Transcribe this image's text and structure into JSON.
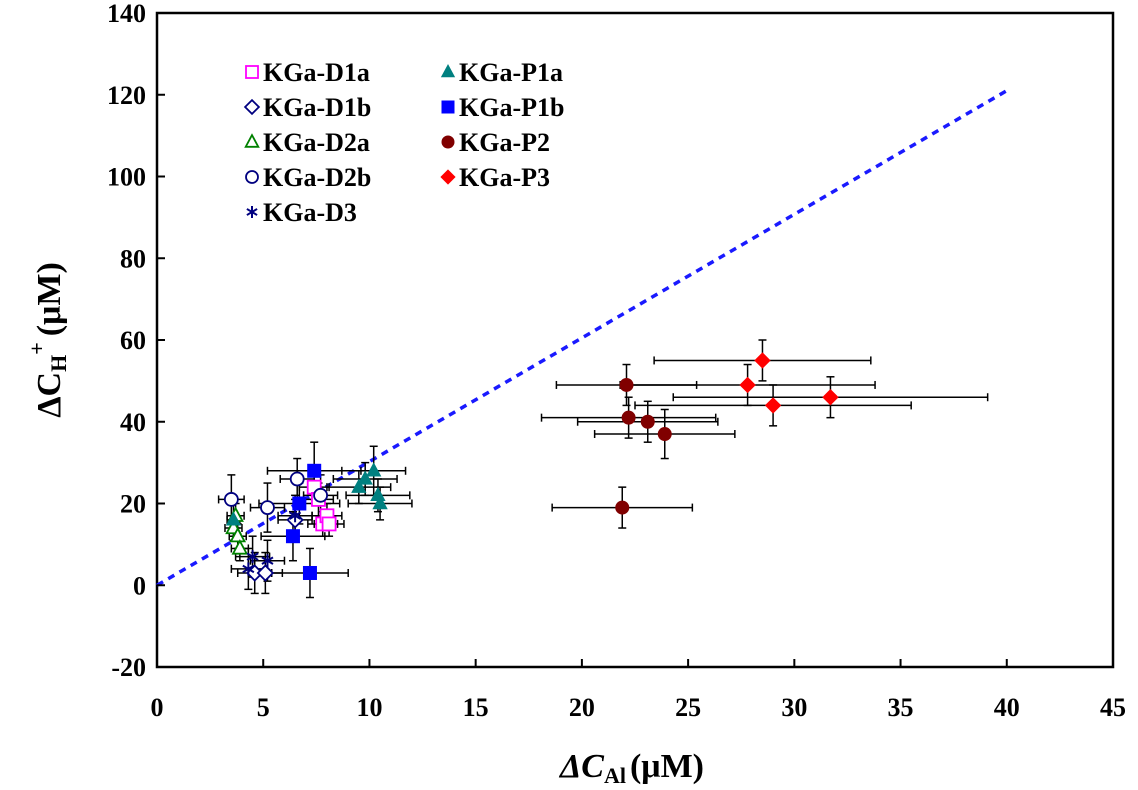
{
  "chart_data": {
    "type": "scatter",
    "title": "",
    "xlabel": {
      "prefix": "ΔC",
      "sub": "Al",
      "unit": "(μM)"
    },
    "ylabel": {
      "prefix": "ΔC",
      "sub": "H",
      "sup": "+",
      "unit": "(μM)"
    },
    "xlim": [
      0,
      45
    ],
    "ylim": [
      -20,
      140
    ],
    "x_ticks": [
      "0",
      "5",
      "10",
      "15",
      "20",
      "25",
      "30",
      "35",
      "40",
      "45"
    ],
    "y_ticks": [
      "-20",
      "0",
      "20",
      "40",
      "60",
      "80",
      "100",
      "120",
      "140"
    ],
    "grid": false,
    "legend_position": "top-left",
    "reference_line": {
      "style": "dashed",
      "color": "#1a1aff",
      "x": [
        0,
        40
      ],
      "y": [
        0,
        121
      ]
    },
    "series": [
      {
        "name": "KGa-D1a",
        "marker": "square-open",
        "color": "#ff00ff",
        "points": [
          [
            7.4,
            24,
            0.7,
            4
          ],
          [
            7.6,
            21,
            0.7,
            4
          ],
          [
            7.8,
            15,
            0.7,
            3
          ],
          [
            8.0,
            17,
            0.7,
            3
          ],
          [
            8.1,
            15,
            0.7,
            3
          ]
        ]
      },
      {
        "name": "KGa-D1b",
        "marker": "diamond-open",
        "color": "#000080",
        "points": [
          [
            4.6,
            3,
            0.8,
            5
          ],
          [
            5.1,
            3,
            0.8,
            5
          ],
          [
            6.5,
            16,
            0.8,
            5
          ]
        ]
      },
      {
        "name": "KGa-D2a",
        "marker": "triangle-open",
        "color": "#008000",
        "points": [
          [
            3.6,
            14,
            0.4,
            3
          ],
          [
            3.7,
            17,
            0.4,
            3
          ],
          [
            3.8,
            12,
            0.4,
            3
          ],
          [
            3.9,
            9,
            0.4,
            3
          ]
        ]
      },
      {
        "name": "KGa-D2b",
        "marker": "circle-open",
        "color": "#000080",
        "points": [
          [
            3.5,
            21,
            0.6,
            6
          ],
          [
            5.2,
            19,
            0.8,
            6
          ],
          [
            6.6,
            26,
            0.8,
            5
          ],
          [
            7.7,
            22,
            0.8,
            5
          ]
        ]
      },
      {
        "name": "KGa-D3",
        "marker": "asterisk",
        "color": "#000080",
        "points": [
          [
            4.5,
            7,
            0.8,
            5
          ],
          [
            5.2,
            6,
            0.8,
            5
          ],
          [
            4.3,
            4,
            0.8,
            5
          ],
          [
            6.5,
            17,
            0.8,
            5
          ]
        ]
      },
      {
        "name": "KGa-P1a",
        "marker": "triangle",
        "color": "#008080",
        "points": [
          [
            3.6,
            16,
            0.3,
            4
          ],
          [
            9.5,
            24,
            1.5,
            4
          ],
          [
            10.2,
            28,
            1.5,
            6
          ],
          [
            10.4,
            22,
            1.5,
            4
          ],
          [
            10.5,
            20,
            1.5,
            4
          ],
          [
            9.8,
            26,
            1.5,
            4
          ]
        ]
      },
      {
        "name": "KGa-P1b",
        "marker": "square",
        "color": "#0000ff",
        "points": [
          [
            7.4,
            28,
            2.2,
            7
          ],
          [
            6.7,
            20,
            1.9,
            5
          ],
          [
            6.4,
            12,
            1.5,
            6
          ],
          [
            7.2,
            3,
            1.8,
            6
          ]
        ]
      },
      {
        "name": "KGa-P2",
        "marker": "circle",
        "color": "#800000",
        "points": [
          [
            22.1,
            49,
            3.3,
            5
          ],
          [
            22.2,
            41,
            4.1,
            5
          ],
          [
            23.1,
            40,
            3.3,
            5
          ],
          [
            23.9,
            37,
            3.3,
            6
          ],
          [
            21.9,
            19,
            3.3,
            5
          ]
        ]
      },
      {
        "name": "KGa-P3",
        "marker": "diamond",
        "color": "#ff0000",
        "points": [
          [
            28.5,
            55,
            5.1,
            5
          ],
          [
            27.8,
            49,
            6.0,
            5
          ],
          [
            29.0,
            44,
            6.5,
            5
          ],
          [
            31.7,
            46,
            7.4,
            5
          ]
        ]
      }
    ]
  }
}
